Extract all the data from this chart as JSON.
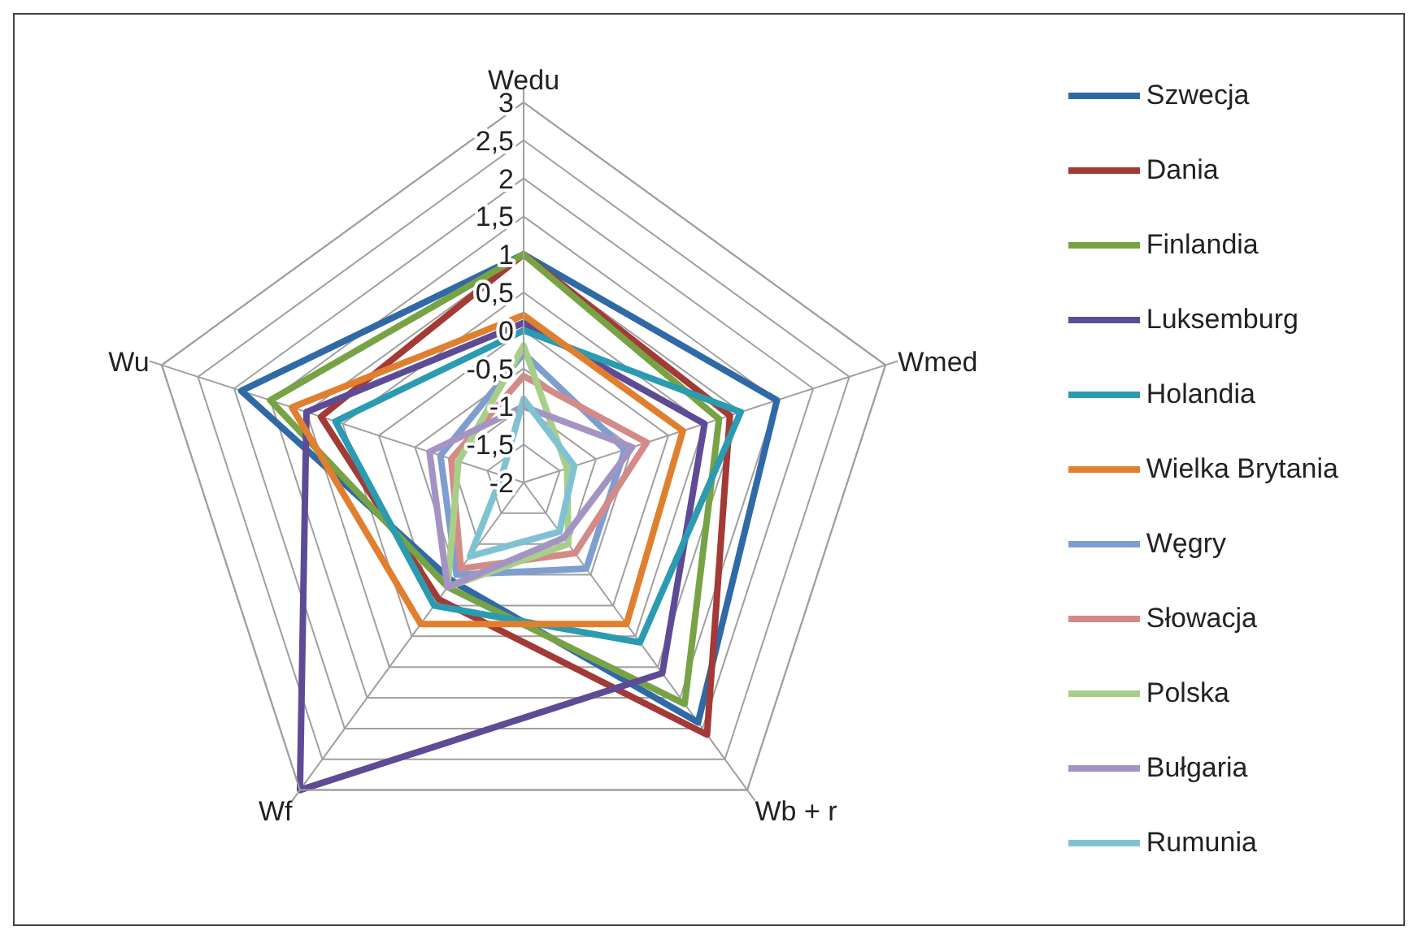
{
  "chart_data": {
    "type": "radar",
    "categories": [
      "Wedu",
      "Wmed",
      "Wb + r",
      "Wf",
      "Wu"
    ],
    "ylim": [
      -2,
      3
    ],
    "yticks": [
      -2,
      {
        "value": -1.5,
        "label": "-1,5"
      },
      -1,
      {
        "value": -0.5,
        "label": "-0,5"
      },
      0,
      {
        "value": 0.5,
        "label": "0,5"
      },
      1,
      {
        "value": 1.5,
        "label": "1,5"
      },
      2,
      {
        "value": 2.5,
        "label": "2,5"
      },
      3
    ],
    "grid": true,
    "legend": "right",
    "marker": "none",
    "series": [
      {
        "name": "Szwecja",
        "color": "#2f6aa6",
        "values": [
          1.0,
          1.5,
          1.9,
          -0.4,
          1.9
        ]
      },
      {
        "name": "Dania",
        "color": "#a33a36",
        "values": [
          1.0,
          0.85,
          2.1,
          -0.1,
          0.8
        ]
      },
      {
        "name": "Finlandia",
        "color": "#77a344",
        "values": [
          1.0,
          0.7,
          1.6,
          -0.3,
          1.5
        ]
      },
      {
        "name": "Luksemburg",
        "color": "#5e4b96",
        "values": [
          0.1,
          0.5,
          1.1,
          3.0,
          1.0
        ]
      },
      {
        "name": "Holandia",
        "color": "#2a9bb0",
        "values": [
          0.0,
          1.0,
          0.6,
          0.0,
          0.6
        ]
      },
      {
        "name": "Wielka Brytania",
        "color": "#e07f2e",
        "values": [
          0.2,
          0.2,
          0.3,
          0.3,
          1.2
        ]
      },
      {
        "name": "Węgry",
        "color": "#7f9ed0",
        "values": [
          -0.3,
          -0.6,
          -0.6,
          -0.5,
          -0.85
        ]
      },
      {
        "name": "Słowacja",
        "color": "#d48a87",
        "values": [
          -0.6,
          -0.3,
          -0.85,
          -0.6,
          -1.0
        ]
      },
      {
        "name": "Polska",
        "color": "#a8cf8a",
        "values": [
          -0.2,
          -1.4,
          -1.0,
          -0.3,
          -1.1
        ]
      },
      {
        "name": "Bułgaria",
        "color": "#a494c4",
        "values": [
          -1.0,
          -0.5,
          -1.1,
          -0.3,
          -0.7
        ]
      },
      {
        "name": "Rumunia",
        "color": "#7fc3d3",
        "values": [
          -0.9,
          -1.3,
          -1.2,
          -0.8,
          -1.7
        ]
      }
    ]
  }
}
